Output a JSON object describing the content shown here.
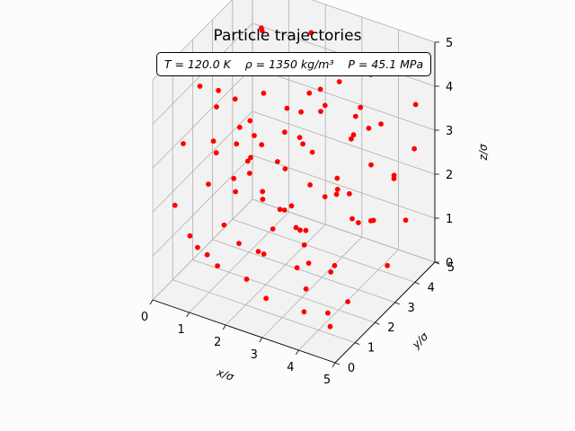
{
  "title": "Particle trajectories",
  "state_text": "T = 120.0 K    ρ = 1350 kg/m³    P = 45.1 MPa",
  "colors": {
    "points": "#ff0000",
    "grid": "#b0b0b0",
    "pane": "#f2f2f2"
  },
  "chart_data": {
    "type": "scatter",
    "projection": "3d",
    "title": "Particle trajectories",
    "annotation": "T = 120.0 K    ρ = 1350 kg/m³    P = 45.1 MPa",
    "xlabel": "x/σ",
    "ylabel": "y/σ",
    "zlabel": "z/σ",
    "xlim": [
      0,
      5
    ],
    "ylim": [
      0,
      5
    ],
    "zlim": [
      0,
      5
    ],
    "xticks": [
      "0",
      "1",
      "2",
      "3",
      "4",
      "5"
    ],
    "yticks": [
      "0",
      "1",
      "2",
      "3",
      "4",
      "5"
    ],
    "zticks": [
      "0",
      "1",
      "2",
      "3",
      "4",
      "5"
    ],
    "grid": true,
    "marker_color": "#ff0000",
    "points": [
      [
        0.3,
        3.6,
        0.9
      ],
      [
        0.6,
        3.1,
        2.3
      ],
      [
        1.0,
        2.3,
        3.8
      ],
      [
        1.3,
        4.0,
        0.6
      ],
      [
        1.7,
        1.8,
        2.9
      ],
      [
        2.0,
        3.3,
        1.2
      ],
      [
        2.4,
        0.7,
        4.1
      ],
      [
        2.8,
        2.7,
        0.4
      ],
      [
        3.1,
        4.5,
        3.0
      ],
      [
        3.5,
        1.2,
        1.7
      ],
      [
        3.9,
        3.8,
        4.5
      ],
      [
        4.2,
        2.1,
        0.2
      ],
      [
        4.6,
        4.7,
        2.6
      ],
      [
        4.9,
        0.9,
        3.4
      ],
      [
        0.8,
        0.4,
        1.5
      ],
      [
        1.2,
        1.1,
        4.6
      ],
      [
        1.6,
        4.6,
        1.9
      ],
      [
        2.1,
        4.1,
        4.8
      ],
      [
        2.6,
        1.5,
        3.2
      ],
      [
        3.0,
        0.2,
        0.8
      ],
      [
        3.4,
        3.0,
        2.0
      ],
      [
        3.7,
        4.3,
        0.9
      ],
      [
        4.1,
        0.5,
        4.3
      ],
      [
        4.4,
        3.4,
        3.7
      ],
      [
        0.2,
        2.0,
        4.0
      ],
      [
        0.5,
        4.8,
        3.1
      ],
      [
        0.9,
        1.6,
        0.3
      ],
      [
        1.4,
        2.9,
        2.6
      ],
      [
        1.9,
        0.1,
        2.2
      ],
      [
        2.3,
        2.4,
        1.6
      ],
      [
        2.7,
        3.7,
        3.5
      ],
      [
        3.2,
        2.0,
        4.7
      ],
      [
        3.6,
        0.6,
        2.4
      ],
      [
        4.0,
        1.8,
        1.1
      ],
      [
        4.5,
        2.6,
        4.0
      ],
      [
        4.8,
        3.9,
        1.4
      ],
      [
        0.4,
        0.8,
        3.3
      ],
      [
        0.7,
        4.2,
        4.4
      ],
      [
        1.1,
        3.5,
        1.0
      ],
      [
        1.5,
        0.3,
        3.9
      ],
      [
        1.8,
        2.0,
        0.7
      ],
      [
        2.2,
        4.4,
        2.9
      ],
      [
        2.5,
        1.0,
        1.3
      ],
      [
        2.9,
        3.1,
        4.2
      ],
      [
        3.3,
        4.9,
        0.5
      ],
      [
        3.8,
        2.3,
        2.8
      ],
      [
        4.3,
        1.4,
        3.1
      ],
      [
        4.7,
        0.3,
        0.6
      ],
      [
        0.1,
        3.0,
        2.0
      ],
      [
        0.6,
        1.3,
        4.9
      ],
      [
        1.0,
        4.9,
        2.4
      ],
      [
        1.3,
        2.5,
        3.3
      ],
      [
        1.7,
        3.9,
        4.0
      ],
      [
        2.0,
        1.9,
        4.4
      ],
      [
        2.4,
        3.0,
        0.9
      ],
      [
        2.8,
        0.9,
        2.0
      ],
      [
        3.1,
        1.7,
        3.8
      ],
      [
        3.5,
        3.6,
        1.2
      ],
      [
        3.9,
        0.1,
        1.8
      ],
      [
        4.2,
        4.0,
        4.9
      ],
      [
        4.6,
        1.9,
        2.2
      ],
      [
        4.9,
        2.8,
        0.9
      ],
      [
        0.3,
        1.7,
        0.5
      ],
      [
        0.8,
        2.6,
        1.8
      ],
      [
        1.2,
        0.6,
        2.7
      ],
      [
        1.6,
        1.4,
        1.1
      ],
      [
        2.1,
        2.8,
        2.3
      ],
      [
        2.6,
        4.6,
        3.6
      ],
      [
        3.0,
        2.2,
        0.1
      ],
      [
        3.4,
        0.4,
        4.6
      ],
      [
        3.7,
        3.3,
        3.3
      ],
      [
        4.1,
        4.6,
        1.9
      ],
      [
        4.4,
        2.9,
        3.0
      ],
      [
        0.5,
        0.2,
        2.2
      ],
      [
        0.9,
        3.8,
        4.7
      ],
      [
        1.4,
        1.8,
        3.5
      ],
      [
        1.9,
        4.2,
        0.2
      ],
      [
        2.3,
        0.5,
        0.9
      ],
      [
        2.7,
        2.5,
        3.9
      ],
      [
        3.2,
        4.1,
        2.7
      ],
      [
        3.6,
        1.0,
        0.3
      ],
      [
        4.0,
        3.1,
        4.1
      ],
      [
        4.5,
        0.7,
        1.6
      ],
      [
        4.8,
        4.4,
        3.8
      ],
      [
        0.2,
        4.4,
        1.2
      ],
      [
        0.6,
        2.1,
        3.6
      ],
      [
        1.0,
        0.9,
        0.9
      ],
      [
        1.5,
        3.2,
        4.3
      ],
      [
        2.0,
        1.2,
        2.9
      ],
      [
        2.4,
        3.5,
        1.7
      ],
      [
        2.9,
        0.2,
        3.2
      ],
      [
        3.3,
        2.6,
        2.1
      ],
      [
        3.8,
        4.8,
        4.2
      ],
      [
        4.2,
        1.1,
        0.4
      ],
      [
        4.7,
        3.5,
        2.5
      ]
    ]
  }
}
